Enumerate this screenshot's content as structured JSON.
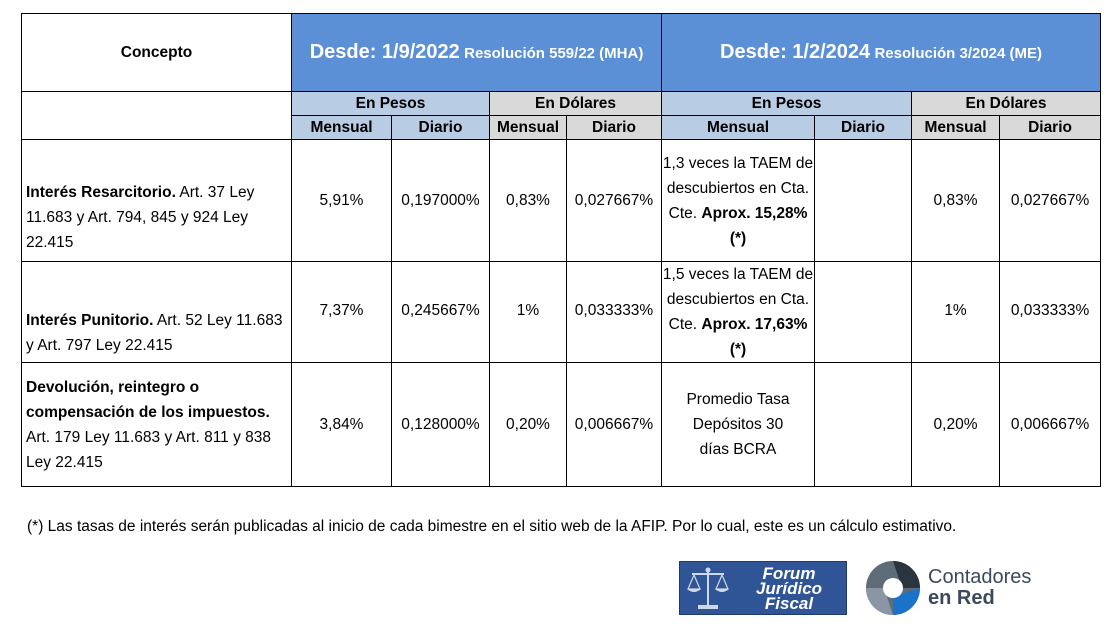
{
  "header": {
    "concepto": "Concepto",
    "period1_date": "Desde: 1/9/2022",
    "period1_res": "Resolución 559/22 (MHA)",
    "period2_date": "Desde: 1/2/2024",
    "period2_res": "Resolución 3/2024 (ME)",
    "en_pesos": "En Pesos",
    "en_dolares": "En Dólares",
    "mensual": "Mensual",
    "diario": "Diario"
  },
  "rows": [
    {
      "concept_bold": "Interés Resarcitorio.",
      "concept_rest": "Art. 37 Ley 11.683  y Art. 794, 845 y 924 Ley 22.415",
      "p1_pesos_mensual": "5,91%",
      "p1_pesos_diario": "0,197000%",
      "p1_dol_mensual": "0,83%",
      "p1_dol_diario": "0,027667%",
      "p2_pesos_text": "1,3 veces la TAEM de descubiertos en Cta. Cte.",
      "p2_pesos_aprox": "Aprox. 15,28% (*)",
      "p2_pesos_diario": "",
      "p2_dol_mensual": "0,83%",
      "p2_dol_diario": "0,027667%"
    },
    {
      "concept_bold": "Interés Punitorio.",
      "concept_rest": "Art. 52 Ley 11.683 y Art. 797 Ley 22.415",
      "p1_pesos_mensual": "7,37%",
      "p1_pesos_diario": "0,245667%",
      "p1_dol_mensual": "1%",
      "p1_dol_diario": "0,033333%",
      "p2_pesos_text": "1,5 veces la TAEM de descubiertos en Cta. Cte.",
      "p2_pesos_aprox": "Aprox. 17,63% (*)",
      "p2_pesos_diario": "",
      "p2_dol_mensual": "1%",
      "p2_dol_diario": "0,033333%"
    },
    {
      "concept_bold": "Devolución, reintegro o compensación de los impuestos.",
      "concept_rest": "Art. 179  Ley  11.683 y Art. 811 y 838 Ley 22.415",
      "p1_pesos_mensual": "3,84%",
      "p1_pesos_diario": "0,128000%",
      "p1_dol_mensual": "0,20%",
      "p1_dol_diario": "0,006667%",
      "p2_pesos_text": "Promedio Tasa Depósitos 30 días BCRA",
      "p2_pesos_aprox": "",
      "p2_pesos_diario": "",
      "p2_dol_mensual": "0,20%",
      "p2_dol_diario": "0,006667%"
    }
  ],
  "footnote": "(*) Las tasas de interés serán publicadas al inicio de cada bimestre en el sitio web de la AFIP. Por lo cual, este es un cálculo estimativo.",
  "logos": {
    "forum_line1": "Forum",
    "forum_line2": "Jurídico",
    "forum_line3": "Fiscal",
    "contadores_line1": "Contadores",
    "contadores_line2": "en Red"
  },
  "colors": {
    "header_blue": "#5b8fd6",
    "subheader_light_blue": "#b8cce4",
    "subheader_grey": "#d9d9d9"
  }
}
